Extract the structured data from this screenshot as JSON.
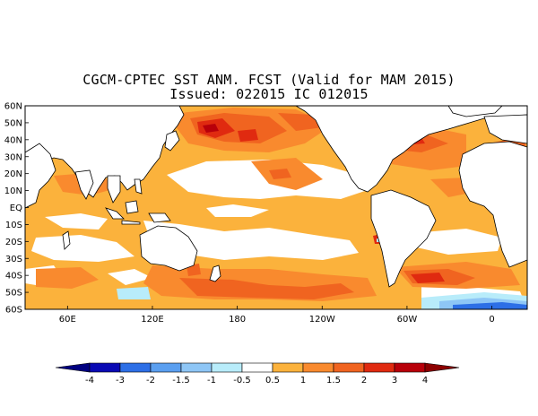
{
  "title_line1": "CGCM-CPTEC SST ANM. FCST  (Valid for MAM 2015)",
  "title_line2": "Issued:  022015 IC 012015",
  "map": {
    "lat_labels": [
      "60N",
      "50N",
      "40N",
      "30N",
      "20N",
      "10N",
      "EQ",
      "10S",
      "20S",
      "30S",
      "40S",
      "50S",
      "60S"
    ],
    "lat_values": [
      60,
      50,
      40,
      30,
      20,
      10,
      0,
      -10,
      -20,
      -30,
      -40,
      -50,
      -60
    ],
    "lon_labels": [
      "60E",
      "120E",
      "180",
      "120W",
      "60W",
      "0"
    ],
    "lon_values": [
      60,
      120,
      180,
      240,
      300,
      360
    ],
    "lon_range": [
      30,
      385
    ],
    "lat_range": [
      -60,
      60
    ]
  },
  "colorbar": {
    "labels": [
      "-4",
      "-3",
      "-2",
      "-1.5",
      "-1",
      "-0.5",
      "0.5",
      "1",
      "1.5",
      "2",
      "3",
      "4"
    ],
    "colors": [
      "#0a0ab4",
      "#2d6fe6",
      "#5a9ff0",
      "#8ec6f6",
      "#b8ecfa",
      "#ffffff",
      "#fbb23c",
      "#f98a2e",
      "#f06420",
      "#e02a10",
      "#b8000a"
    ],
    "tri_low_color": "#000080",
    "tri_high_color": "#8c0000"
  },
  "colors": {
    "anom_0_5_1": "#fbb23c",
    "anom_1_1_5": "#f98a2e",
    "anom_1_5_2": "#f06420",
    "anom_2_3": "#e02a10",
    "anom_3_4": "#b8000a",
    "neg_0_5_1": "#b8ecfa",
    "neg_1_1_5": "#8ec6f6",
    "neg_1_5_2": "#5a9ff0",
    "neg_2_3": "#2d6fe6",
    "land": "#ffffff",
    "coast": "#000000"
  }
}
